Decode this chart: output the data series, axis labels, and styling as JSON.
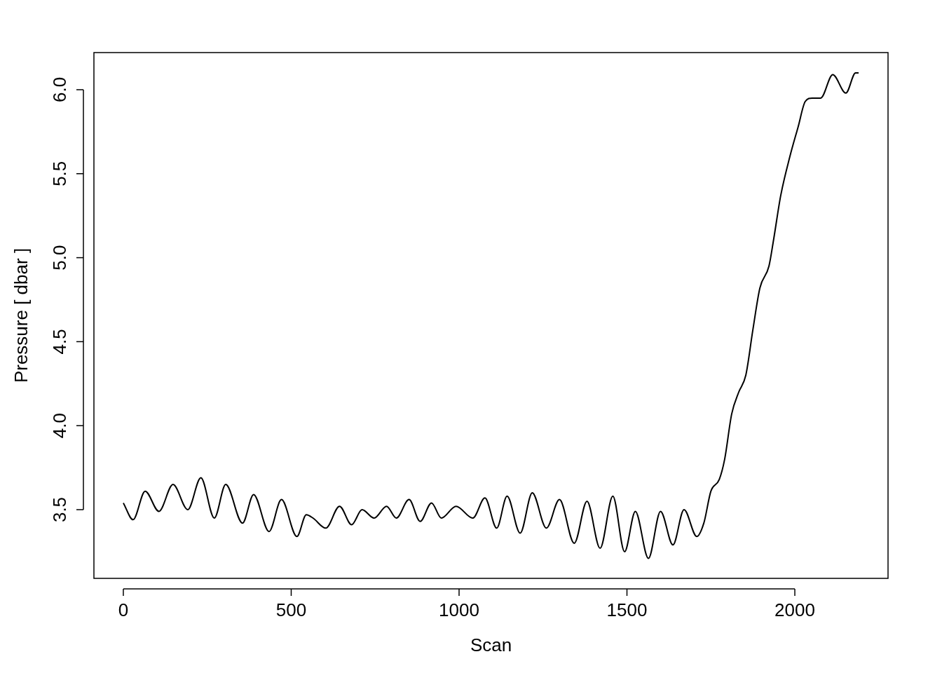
{
  "chart_data": {
    "type": "line",
    "xlabel": "Scan",
    "ylabel": "Pressure [ dbar ]",
    "color": "#000000",
    "marker": "none",
    "line_style": "solid",
    "legend": false,
    "xlim": [
      -87.6,
      2277.6
    ],
    "ylim": [
      3.091,
      6.221
    ],
    "xticks": [
      0,
      500,
      1000,
      1500,
      2000
    ],
    "yticks": [
      {
        "value": 3.5,
        "label": "3.5"
      },
      {
        "value": 4,
        "label": "4.0"
      },
      {
        "value": 4.5,
        "label": "4.5"
      },
      {
        "value": 5,
        "label": "5.0"
      },
      {
        "value": 5.5,
        "label": "5.5"
      },
      {
        "value": 6,
        "label": "6.0"
      }
    ],
    "x": [
      0,
      29,
      65,
      106,
      148,
      192,
      231,
      271,
      305,
      355,
      388,
      434,
      471,
      517,
      545,
      565,
      603,
      644,
      680,
      711,
      747,
      784,
      813,
      851,
      884,
      918,
      947,
      991,
      1041,
      1077,
      1112,
      1143,
      1182,
      1218,
      1260,
      1299,
      1343,
      1381,
      1420,
      1458,
      1493,
      1525,
      1564,
      1600,
      1637,
      1670,
      1708,
      1729,
      1750,
      1775,
      1791,
      1812,
      1833,
      1854,
      1875,
      1896,
      1923,
      1937,
      1958,
      1985,
      2010,
      2031,
      2052,
      2077,
      2113,
      2152,
      2181,
      2190
    ],
    "values": [
      3.54,
      3.44,
      3.61,
      3.49,
      3.65,
      3.5,
      3.69,
      3.45,
      3.65,
      3.42,
      3.59,
      3.37,
      3.56,
      3.34,
      3.47,
      3.45,
      3.39,
      3.52,
      3.41,
      3.5,
      3.45,
      3.52,
      3.45,
      3.56,
      3.43,
      3.54,
      3.45,
      3.52,
      3.45,
      3.57,
      3.39,
      3.58,
      3.36,
      3.6,
      3.39,
      3.56,
      3.3,
      3.55,
      3.27,
      3.58,
      3.25,
      3.49,
      3.21,
      3.49,
      3.29,
      3.5,
      3.34,
      3.42,
      3.61,
      3.68,
      3.8,
      4.07,
      4.2,
      4.3,
      4.57,
      4.82,
      4.95,
      5.11,
      5.37,
      5.6,
      5.78,
      5.93,
      5.95,
      5.95,
      6.09,
      5.98,
      6.1,
      6.1
    ]
  }
}
